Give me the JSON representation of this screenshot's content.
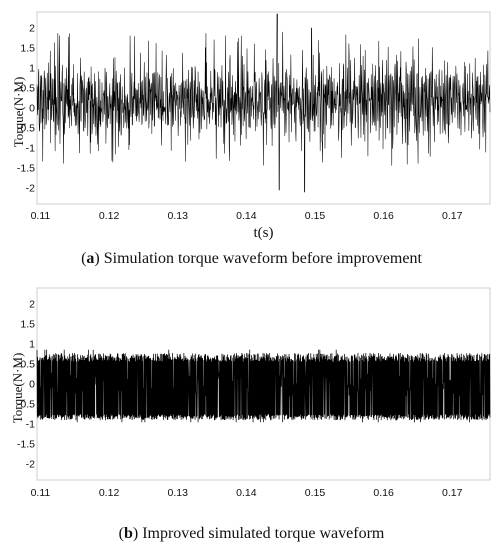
{
  "chart_data": [
    {
      "type": "line",
      "panel_label": "a",
      "caption_open": "(",
      "caption_close": ")",
      "caption": "Simulation torque waveform before improvement",
      "title": "",
      "xlabel": "t(s)",
      "ylabel": "Torque(N·M)",
      "xlim": [
        0.1095,
        0.1755
      ],
      "ylim": [
        -2.4,
        2.4
      ],
      "xticks": [
        "0.11",
        "0.12",
        "0.13",
        "0.14",
        "0.15",
        "0.16",
        "0.17"
      ],
      "yticks": [
        "2",
        "1.5",
        "1",
        "0.5",
        "0",
        "-0.5",
        "-1",
        "-1.5",
        "-2"
      ],
      "ytick_values": [
        2,
        1.5,
        1,
        0.5,
        0,
        -0.5,
        -1,
        -1.5,
        -2
      ],
      "grid": false,
      "series": [
        {
          "color": "#000000",
          "x_start": 0.1095,
          "x_end": 0.1755,
          "max_peak": 2.35,
          "min_trough": -2.1,
          "peaks": [
            {
              "x": 0.1445,
              "y": 2.35
            },
            {
              "x": 0.1448,
              "y": -2.05
            },
            {
              "x": 0.1485,
              "y": -2.1
            },
            {
              "x": 0.1495,
              "y": 2.0
            }
          ]
        }
      ]
    },
    {
      "type": "line",
      "panel_label": "b",
      "caption_open": "(",
      "caption_close": ")",
      "caption": "Improved simulated torque waveform",
      "title": "",
      "xlabel": "",
      "ylabel": "Torque(N·M)",
      "xlim": [
        0.1095,
        0.1755
      ],
      "ylim": [
        -2.4,
        2.4
      ],
      "xticks": [
        "0.11",
        "0.12",
        "0.13",
        "0.14",
        "0.15",
        "0.16",
        "0.17"
      ],
      "yticks": [
        "2",
        "1.5",
        "1",
        "0.5",
        "0",
        "-0.5",
        "-1",
        "-1.5",
        "-2"
      ],
      "ytick_values": [
        2,
        1.5,
        1,
        0.5,
        0,
        -0.5,
        -1,
        -1.5,
        -2
      ],
      "grid": false,
      "series": [
        {
          "color": "#000000",
          "x_start": 0.1095,
          "x_end": 0.1755,
          "max_peak": 0.85,
          "min_trough": -0.95,
          "typical_range": [
            -0.8,
            0.7
          ]
        }
      ]
    }
  ]
}
